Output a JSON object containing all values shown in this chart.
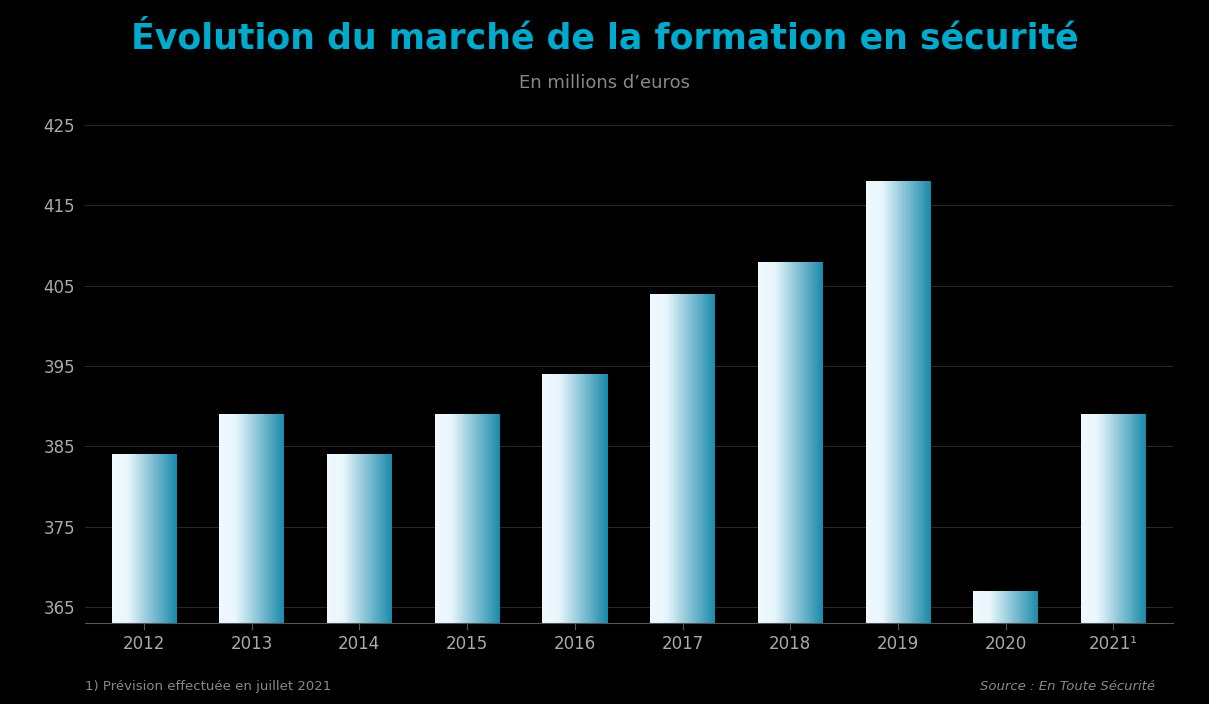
{
  "title": "Évolution du marché de la formation en sécurité",
  "subtitle": "En millions d’euros",
  "footnote": "1) Prévision effectuée en juillet 2021",
  "source_prefix": "Source : ",
  "source_italic": "En Toute Sécurité",
  "categories": [
    "2012",
    "2013",
    "2014",
    "2015",
    "2016",
    "2017",
    "2018",
    "2019",
    "2020",
    "2021¹"
  ],
  "values": [
    384,
    389,
    384,
    389,
    394,
    404,
    408,
    418,
    367,
    389
  ],
  "ylim": [
    363,
    427
  ],
  "yticks": [
    365,
    375,
    385,
    395,
    405,
    415,
    425
  ],
  "background_color": "#000000",
  "bar_color_left": "#e8f6fc",
  "bar_color_right": "#1a8aaa",
  "title_color": "#00aacc",
  "tick_color": "#aaaaaa",
  "grid_color": "#2a2a2a",
  "text_color": "#888888"
}
